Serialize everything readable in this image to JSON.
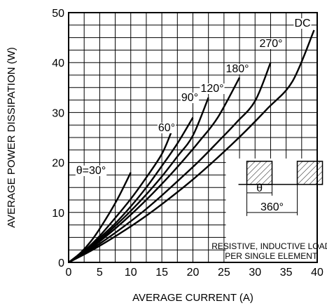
{
  "chart_data": {
    "type": "line",
    "xlabel": "AVERAGE CURRENT (A)",
    "ylabel": "AVERAGE POWER DISSIPATION (W)",
    "xlim": [
      0,
      40
    ],
    "ylim": [
      0,
      50
    ],
    "xticks": [
      0,
      5,
      10,
      15,
      20,
      25,
      30,
      35,
      40
    ],
    "yticks": [
      0,
      10,
      20,
      30,
      40,
      50
    ],
    "grid": true,
    "series": [
      {
        "name": "θ=30°",
        "x": [
          0,
          2,
          4,
          6,
          8,
          10
        ],
        "y": [
          0,
          2.0,
          4.9,
          8.7,
          13.0,
          18.0
        ]
      },
      {
        "name": "60°",
        "x": [
          0,
          2.5,
          5,
          7.5,
          10,
          12.5,
          15,
          16.5
        ],
        "y": [
          0,
          2.3,
          5.3,
          8.9,
          12.7,
          17.0,
          21.7,
          26.0
        ]
      },
      {
        "name": "90°",
        "x": [
          0,
          2.5,
          5,
          7.5,
          10,
          12.5,
          15,
          17.5,
          20
        ],
        "y": [
          0,
          2.2,
          4.9,
          7.8,
          11.2,
          15.0,
          19.3,
          23.8,
          29.0
        ]
      },
      {
        "name": "120°",
        "x": [
          0,
          2.5,
          5,
          7.5,
          10,
          12.5,
          15,
          17.5,
          20,
          22.5
        ],
        "y": [
          0,
          2.1,
          4.5,
          7.3,
          10.3,
          13.6,
          17.2,
          21.2,
          25.4,
          33.0
        ]
      },
      {
        "name": "180°",
        "x": [
          0,
          3,
          6,
          9,
          12,
          15,
          18,
          21,
          24,
          27.5
        ],
        "y": [
          0,
          2.3,
          5.2,
          8.4,
          11.9,
          15.7,
          19.8,
          24.2,
          29.0,
          37.0
        ]
      },
      {
        "name": "270°",
        "x": [
          0,
          3,
          6,
          9,
          12,
          15,
          18,
          21,
          24,
          27,
          30,
          32.5
        ],
        "y": [
          0,
          2.1,
          4.6,
          7.3,
          10.2,
          13.4,
          16.8,
          20.3,
          24.1,
          28.0,
          32.3,
          40.0
        ]
      },
      {
        "name": "DC",
        "x": [
          0,
          4,
          8,
          12,
          16,
          20,
          24,
          28,
          32,
          36,
          39.5
        ],
        "y": [
          0,
          2.6,
          5.6,
          8.9,
          12.6,
          16.6,
          21.0,
          25.7,
          30.8,
          36.2,
          46.5
        ]
      }
    ],
    "inset": {
      "angle_label": "θ",
      "period_label": "360°",
      "note_line1": "RESISTIVE, INDUCTIVE LOAD",
      "note_line2": "PER SINGLE ELEMENT"
    }
  }
}
